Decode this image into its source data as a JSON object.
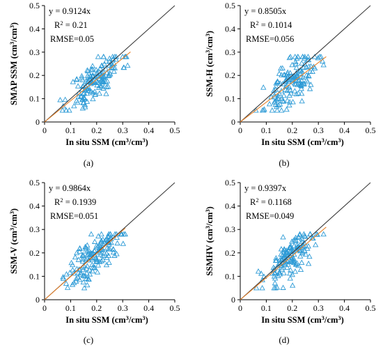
{
  "chart_data": [
    {
      "type": "scatter",
      "panel_label": "(a)",
      "xlabel": "In situ SSM (cm³/cm³)",
      "ylabel": "SMAP SSM (cm³/cm³)",
      "xlim": [
        0,
        0.5
      ],
      "ylim": [
        0,
        0.5
      ],
      "xticks": [
        "0",
        "0.1",
        "0.2",
        "0.3",
        "0.4",
        "0.5"
      ],
      "yticks": [
        "0",
        "0.1",
        "0.2",
        "0.3",
        "0.4",
        "0.5"
      ],
      "annotations": [
        "y = 0.9124x",
        "R² = 0.21",
        "RMSE=0.05"
      ],
      "fit_slope": 0.9124,
      "fit_x_range": [
        0.0,
        0.33
      ],
      "seed": 11,
      "point_cloud": {
        "n": 150,
        "x_mean": 0.195,
        "x_sd": 0.05,
        "noise_sd": 0.045,
        "x_min": 0.06,
        "x_max": 0.32
      },
      "colors": {
        "points": "#2e9bd6",
        "fit": "#e8822a",
        "one_to_one": "#3a3a3a"
      }
    },
    {
      "type": "scatter",
      "panel_label": "(b)",
      "xlabel": "In situ SSM (cm³/cm³)",
      "ylabel": "SSM-H (cm³/cm³)",
      "xlim": [
        0,
        0.5
      ],
      "ylim": [
        0,
        0.5
      ],
      "xticks": [
        "0",
        "0.1",
        "0.2",
        "0.3",
        "0.4",
        "0.5"
      ],
      "yticks": [
        "0",
        "0.1",
        "0.2",
        "0.3",
        "0.4",
        "0.5"
      ],
      "annotations": [
        "y = 0.8505x",
        "R² = 0.1014",
        "RMSE=0.056"
      ],
      "fit_slope": 0.8505,
      "fit_x_range": [
        0.0,
        0.33
      ],
      "seed": 23,
      "point_cloud": {
        "n": 150,
        "x_mean": 0.195,
        "x_sd": 0.05,
        "noise_sd": 0.05,
        "x_min": 0.06,
        "x_max": 0.32
      },
      "colors": {
        "points": "#2e9bd6",
        "fit": "#e8822a",
        "one_to_one": "#3a3a3a"
      }
    },
    {
      "type": "scatter",
      "panel_label": "(c)",
      "xlabel": "In situ SSM (cm³/cm³)",
      "ylabel": "SSM-V (cm³/cm³)",
      "xlim": [
        0,
        0.5
      ],
      "ylim": [
        0,
        0.5
      ],
      "xticks": [
        "0",
        "0.1",
        "0.2",
        "0.3",
        "0.4",
        "0.5"
      ],
      "yticks": [
        "0",
        "0.1",
        "0.2",
        "0.3",
        "0.4",
        "0.5"
      ],
      "annotations": [
        "y = 0.9864x",
        "R² = 0.1939",
        "RMSE=0.051"
      ],
      "fit_slope": 0.9864,
      "fit_x_range": [
        0.0,
        0.31
      ],
      "seed": 37,
      "point_cloud": {
        "n": 150,
        "x_mean": 0.19,
        "x_sd": 0.05,
        "noise_sd": 0.045,
        "x_min": 0.06,
        "x_max": 0.31
      },
      "colors": {
        "points": "#2e9bd6",
        "fit": "#e8822a",
        "one_to_one": "#3a3a3a"
      }
    },
    {
      "type": "scatter",
      "panel_label": "(d)",
      "xlabel": "In situ SSM (cm³/cm³)",
      "ylabel": "SSMHV (cm³/cm³)",
      "xlim": [
        0,
        0.5
      ],
      "ylim": [
        0,
        0.5
      ],
      "xticks": [
        "0",
        "0.1",
        "0.2",
        "0.3",
        "0.4",
        "0.5"
      ],
      "yticks": [
        "0",
        "0.1",
        "0.2",
        "0.3",
        "0.4",
        "0.5"
      ],
      "annotations": [
        "y = 0.9397x",
        "R² = 0.1168",
        "RMSE=0.049"
      ],
      "fit_slope": 0.9397,
      "fit_x_range": [
        0.0,
        0.33
      ],
      "seed": 53,
      "point_cloud": {
        "n": 150,
        "x_mean": 0.195,
        "x_sd": 0.05,
        "noise_sd": 0.045,
        "x_min": 0.06,
        "x_max": 0.32
      },
      "colors": {
        "points": "#2e9bd6",
        "fit": "#e8822a",
        "one_to_one": "#3a3a3a"
      }
    }
  ]
}
